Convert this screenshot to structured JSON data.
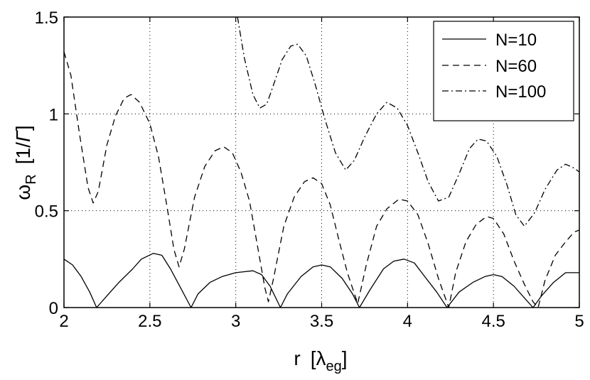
{
  "chart_data": {
    "type": "line",
    "xlabel": {
      "main": "r",
      "bracket_open": "[",
      "symbol": "λ",
      "subscript": "eg",
      "bracket_close": "]"
    },
    "ylabel": {
      "main": "ω",
      "subscript": "R",
      "unit_open": "[1/",
      "unit_symbol": "Γ",
      "unit_close": "]"
    },
    "xlim": [
      2,
      5
    ],
    "ylim": [
      0,
      1.5
    ],
    "grid": true,
    "legend_position": "top-right",
    "x_ticks": [
      {
        "value": 2,
        "label": "2"
      },
      {
        "value": 2.5,
        "label": "2.5"
      },
      {
        "value": 3,
        "label": "3"
      },
      {
        "value": 3.5,
        "label": "3.5"
      },
      {
        "value": 4,
        "label": "4"
      },
      {
        "value": 4.5,
        "label": "4.5"
      },
      {
        "value": 5,
        "label": "5"
      }
    ],
    "y_ticks": [
      {
        "value": 0,
        "label": "0"
      },
      {
        "value": 0.5,
        "label": "0.5"
      },
      {
        "value": 1,
        "label": "1"
      },
      {
        "value": 1.5,
        "label": "1.5"
      }
    ],
    "series": [
      {
        "name": "N=10",
        "dash": "solid",
        "points": [
          [
            2.0,
            0.25
          ],
          [
            2.05,
            0.22
          ],
          [
            2.1,
            0.16
          ],
          [
            2.15,
            0.08
          ],
          [
            2.19,
            0.0
          ],
          [
            2.25,
            0.06
          ],
          [
            2.32,
            0.13
          ],
          [
            2.4,
            0.2
          ],
          [
            2.45,
            0.25
          ],
          [
            2.52,
            0.28
          ],
          [
            2.57,
            0.27
          ],
          [
            2.62,
            0.2
          ],
          [
            2.68,
            0.1
          ],
          [
            2.74,
            0.0
          ],
          [
            2.78,
            0.07
          ],
          [
            2.85,
            0.13
          ],
          [
            2.92,
            0.16
          ],
          [
            3.0,
            0.18
          ],
          [
            3.1,
            0.19
          ],
          [
            3.15,
            0.17
          ],
          [
            3.2,
            0.11
          ],
          [
            3.26,
            0.0
          ],
          [
            3.3,
            0.07
          ],
          [
            3.38,
            0.16
          ],
          [
            3.45,
            0.21
          ],
          [
            3.5,
            0.22
          ],
          [
            3.55,
            0.21
          ],
          [
            3.62,
            0.15
          ],
          [
            3.68,
            0.07
          ],
          [
            3.72,
            0.0
          ],
          [
            3.78,
            0.09
          ],
          [
            3.86,
            0.2
          ],
          [
            3.92,
            0.24
          ],
          [
            3.98,
            0.25
          ],
          [
            4.04,
            0.23
          ],
          [
            4.1,
            0.16
          ],
          [
            4.17,
            0.08
          ],
          [
            4.23,
            0.0
          ],
          [
            4.3,
            0.08
          ],
          [
            4.38,
            0.13
          ],
          [
            4.45,
            0.16
          ],
          [
            4.5,
            0.17
          ],
          [
            4.55,
            0.16
          ],
          [
            4.62,
            0.11
          ],
          [
            4.68,
            0.05
          ],
          [
            4.73,
            0.0
          ],
          [
            4.78,
            0.06
          ],
          [
            4.85,
            0.13
          ],
          [
            4.92,
            0.18
          ],
          [
            5.0,
            0.18
          ]
        ]
      },
      {
        "name": "N=60",
        "dash": "dashed",
        "points": [
          [
            2.0,
            1.32
          ],
          [
            2.04,
            1.2
          ],
          [
            2.09,
            0.9
          ],
          [
            2.14,
            0.62
          ],
          [
            2.17,
            0.54
          ],
          [
            2.2,
            0.6
          ],
          [
            2.25,
            0.84
          ],
          [
            2.3,
            0.99
          ],
          [
            2.35,
            1.08
          ],
          [
            2.39,
            1.1
          ],
          [
            2.44,
            1.06
          ],
          [
            2.5,
            0.95
          ],
          [
            2.55,
            0.78
          ],
          [
            2.6,
            0.52
          ],
          [
            2.64,
            0.3
          ],
          [
            2.67,
            0.21
          ],
          [
            2.7,
            0.3
          ],
          [
            2.76,
            0.57
          ],
          [
            2.82,
            0.73
          ],
          [
            2.88,
            0.81
          ],
          [
            2.93,
            0.83
          ],
          [
            2.98,
            0.8
          ],
          [
            3.03,
            0.7
          ],
          [
            3.08,
            0.55
          ],
          [
            3.13,
            0.3
          ],
          [
            3.17,
            0.1
          ],
          [
            3.19,
            0.03
          ],
          [
            3.22,
            0.15
          ],
          [
            3.28,
            0.42
          ],
          [
            3.34,
            0.57
          ],
          [
            3.4,
            0.65
          ],
          [
            3.45,
            0.67
          ],
          [
            3.5,
            0.64
          ],
          [
            3.55,
            0.53
          ],
          [
            3.6,
            0.35
          ],
          [
            3.65,
            0.18
          ],
          [
            3.71,
            0.02
          ],
          [
            3.76,
            0.22
          ],
          [
            3.82,
            0.42
          ],
          [
            3.88,
            0.51
          ],
          [
            3.95,
            0.56
          ],
          [
            4.0,
            0.55
          ],
          [
            4.06,
            0.48
          ],
          [
            4.12,
            0.33
          ],
          [
            4.18,
            0.15
          ],
          [
            4.24,
            0.0
          ],
          [
            4.28,
            0.18
          ],
          [
            4.34,
            0.34
          ],
          [
            4.4,
            0.43
          ],
          [
            4.46,
            0.47
          ],
          [
            4.5,
            0.46
          ],
          [
            4.56,
            0.38
          ],
          [
            4.62,
            0.24
          ],
          [
            4.68,
            0.12
          ],
          [
            4.73,
            0.03
          ],
          [
            4.76,
            0.0
          ],
          [
            4.8,
            0.14
          ],
          [
            4.86,
            0.27
          ],
          [
            4.92,
            0.34
          ],
          [
            4.97,
            0.39
          ],
          [
            5.0,
            0.4
          ]
        ]
      },
      {
        "name": "N=100",
        "dash": "dashdot",
        "points": [
          [
            3.01,
            1.5
          ],
          [
            3.05,
            1.29
          ],
          [
            3.1,
            1.1
          ],
          [
            3.14,
            1.03
          ],
          [
            3.18,
            1.05
          ],
          [
            3.22,
            1.15
          ],
          [
            3.27,
            1.28
          ],
          [
            3.32,
            1.35
          ],
          [
            3.36,
            1.36
          ],
          [
            3.41,
            1.3
          ],
          [
            3.46,
            1.16
          ],
          [
            3.52,
            0.97
          ],
          [
            3.58,
            0.8
          ],
          [
            3.64,
            0.71
          ],
          [
            3.69,
            0.76
          ],
          [
            3.75,
            0.88
          ],
          [
            3.82,
            1.0
          ],
          [
            3.88,
            1.06
          ],
          [
            3.94,
            1.03
          ],
          [
            4.0,
            0.94
          ],
          [
            4.06,
            0.8
          ],
          [
            4.12,
            0.65
          ],
          [
            4.18,
            0.55
          ],
          [
            4.24,
            0.57
          ],
          [
            4.3,
            0.69
          ],
          [
            4.36,
            0.82
          ],
          [
            4.41,
            0.87
          ],
          [
            4.46,
            0.86
          ],
          [
            4.52,
            0.78
          ],
          [
            4.58,
            0.63
          ],
          [
            4.63,
            0.48
          ],
          [
            4.68,
            0.42
          ],
          [
            4.74,
            0.49
          ],
          [
            4.8,
            0.61
          ],
          [
            4.87,
            0.71
          ],
          [
            4.92,
            0.74
          ],
          [
            4.97,
            0.72
          ],
          [
            5.0,
            0.7
          ]
        ]
      }
    ]
  }
}
